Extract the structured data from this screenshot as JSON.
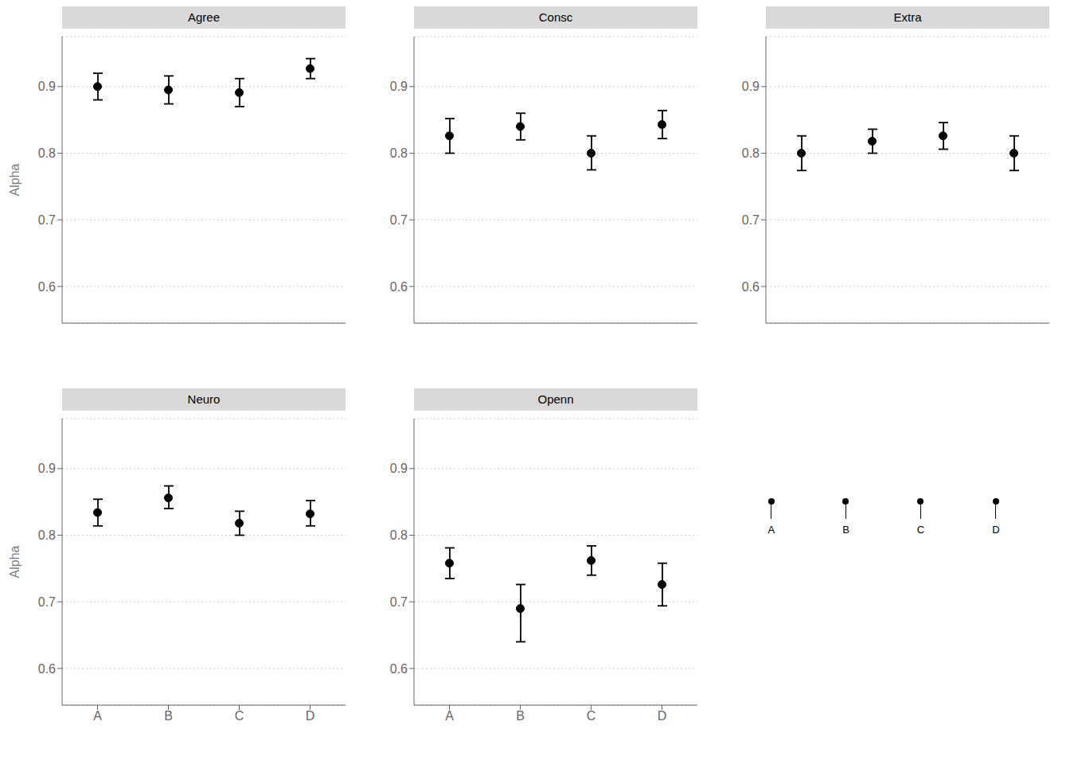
{
  "chart_data": [
    {
      "type": "scatter",
      "title": "Agree",
      "ylabel": "Alpha",
      "categories": [
        "A",
        "B",
        "C",
        "D"
      ],
      "values": [
        0.9,
        0.895,
        0.891,
        0.927
      ],
      "lower": [
        0.88,
        0.874,
        0.87,
        0.912
      ],
      "upper": [
        0.92,
        0.916,
        0.912,
        0.942
      ],
      "ylim": [
        0.545,
        0.975
      ],
      "yticks": [
        0.6,
        0.7,
        0.8,
        0.9
      ],
      "grid": true,
      "color": "#000000",
      "tick_labels": "y"
    },
    {
      "type": "scatter",
      "title": "Consc",
      "categories": [
        "A",
        "B",
        "C",
        "D"
      ],
      "values": [
        0.826,
        0.84,
        0.8,
        0.843
      ],
      "lower": [
        0.8,
        0.82,
        0.775,
        0.822
      ],
      "upper": [
        0.852,
        0.86,
        0.826,
        0.864
      ],
      "ylim": [
        0.545,
        0.975
      ],
      "yticks": [
        0.6,
        0.7,
        0.8,
        0.9
      ],
      "grid": true,
      "color": "#000000",
      "tick_labels": "y"
    },
    {
      "type": "scatter",
      "title": "Extra",
      "categories": [
        "A",
        "B",
        "C",
        "D"
      ],
      "values": [
        0.8,
        0.818,
        0.826,
        0.8
      ],
      "lower": [
        0.774,
        0.8,
        0.806,
        0.774
      ],
      "upper": [
        0.826,
        0.836,
        0.846,
        0.826
      ],
      "ylim": [
        0.545,
        0.975
      ],
      "yticks": [
        0.6,
        0.7,
        0.8,
        0.9
      ],
      "grid": true,
      "color": "#000000",
      "tick_labels": "y"
    },
    {
      "type": "scatter",
      "title": "Neuro",
      "ylabel": "Alpha",
      "categories": [
        "A",
        "B",
        "C",
        "D"
      ],
      "values": [
        0.834,
        0.856,
        0.818,
        0.832
      ],
      "lower": [
        0.814,
        0.84,
        0.8,
        0.814
      ],
      "upper": [
        0.854,
        0.874,
        0.836,
        0.852
      ],
      "ylim": [
        0.545,
        0.975
      ],
      "yticks": [
        0.6,
        0.7,
        0.8,
        0.9
      ],
      "grid": true,
      "color": "#000000"
    },
    {
      "type": "scatter",
      "title": "Openn",
      "categories": [
        "A",
        "B",
        "C",
        "D"
      ],
      "values": [
        0.758,
        0.69,
        0.762,
        0.726
      ],
      "lower": [
        0.735,
        0.64,
        0.74,
        0.694
      ],
      "upper": [
        0.781,
        0.726,
        0.784,
        0.758
      ],
      "ylim": [
        0.545,
        0.975
      ],
      "yticks": [
        0.6,
        0.7,
        0.8,
        0.9
      ],
      "grid": true,
      "color": "#000000"
    }
  ]
}
